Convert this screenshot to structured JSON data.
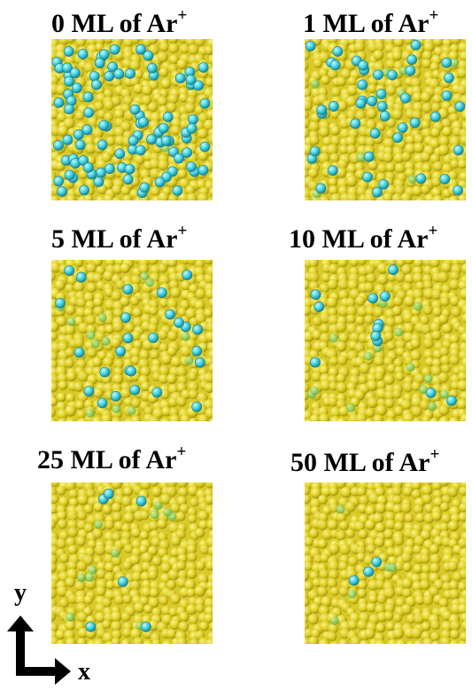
{
  "panels": [
    {
      "prefix": "0 ML of Ar",
      "sup": "+",
      "dose_ml": 0,
      "ar_count": 95,
      "faint_count": 2
    },
    {
      "prefix": "1 ML of Ar",
      "sup": "+",
      "dose_ml": 1,
      "ar_count": 45,
      "faint_count": 8
    },
    {
      "prefix": "5 ML of Ar",
      "sup": "+",
      "dose_ml": 5,
      "ar_count": 26,
      "faint_count": 14
    },
    {
      "prefix": "10 ML of Ar",
      "sup": "+",
      "dose_ml": 10,
      "ar_count": 12,
      "faint_count": 14
    },
    {
      "prefix": "25 ML of Ar",
      "sup": "+",
      "dose_ml": 25,
      "ar_count": 6,
      "faint_count": 11
    },
    {
      "prefix": "50 ML of Ar",
      "sup": "+",
      "dose_ml": 50,
      "ar_count": 3,
      "faint_count": 5
    }
  ],
  "axes": {
    "x_label": "x",
    "y_label": "y"
  },
  "colors": {
    "matrix_atom": "#e2d325",
    "matrix_atom_shadow": "#9e8f10",
    "matrix_atom_highlight": "#fbf59a",
    "ar_atom": "#3fd0df",
    "ar_atom_faint": "#7ccf6a",
    "ar_atom_edge": "#1a7f8c"
  }
}
